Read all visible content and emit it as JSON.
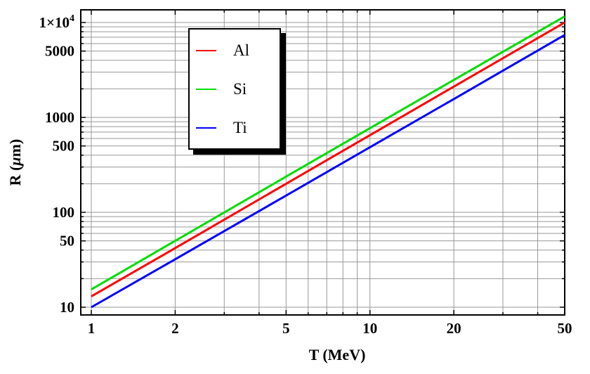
{
  "chart_data": {
    "type": "line",
    "title": "",
    "xlabel": "T (MeV)",
    "ylabel": "R (μm)",
    "ylabel_parts": {
      "prefix": "R (",
      "mu": "μ",
      "suffix": "m)"
    },
    "x_scale": "log",
    "y_scale": "log",
    "xlim": [
      0.92,
      50
    ],
    "ylim": [
      8.3,
      13700
    ],
    "grid": "all",
    "legend_position": "upper-left-inside",
    "x_ticks": [
      {
        "v": 1,
        "label": "1"
      },
      {
        "v": 2,
        "label": "2"
      },
      {
        "v": 5,
        "label": "5"
      },
      {
        "v": 10,
        "label": "10"
      },
      {
        "v": 20,
        "label": "20"
      },
      {
        "v": 50,
        "label": "50"
      }
    ],
    "y_ticks": [
      {
        "v": 10,
        "label": "10"
      },
      {
        "v": 50,
        "label": "50"
      },
      {
        "v": 100,
        "label": "100"
      },
      {
        "v": 500,
        "label": "500"
      },
      {
        "v": 1000,
        "label": "1000"
      },
      {
        "v": 5000,
        "label": "5000"
      },
      {
        "v": 10000,
        "label": "1×10",
        "exp": "4"
      }
    ],
    "x_minor_ticks": [
      3,
      4,
      6,
      7,
      8,
      9,
      30,
      40
    ],
    "y_minor_ticks": [
      20,
      30,
      40,
      60,
      70,
      80,
      90,
      200,
      300,
      400,
      600,
      700,
      800,
      900,
      2000,
      3000,
      4000,
      6000,
      7000,
      8000,
      9000
    ],
    "x_gridlines": [
      1,
      2,
      3,
      4,
      5,
      6,
      7,
      8,
      9,
      10,
      20,
      30,
      40,
      50
    ],
    "y_gridlines": [
      10,
      20,
      30,
      40,
      50,
      60,
      70,
      80,
      90,
      100,
      200,
      300,
      400,
      500,
      600,
      700,
      800,
      900,
      1000,
      2000,
      3000,
      4000,
      5000,
      6000,
      7000,
      8000,
      9000,
      10000
    ],
    "series": [
      {
        "name": "Al",
        "color": "#ff0000",
        "x": [
          1,
          2,
          5,
          10,
          20,
          50
        ],
        "y": [
          13,
          42,
          200,
          650,
          2110,
          10000
        ]
      },
      {
        "name": "Si",
        "color": "#00dd00",
        "x": [
          1,
          2,
          5,
          10,
          20,
          50
        ],
        "y": [
          15.4,
          50,
          238,
          770,
          2480,
          11600
        ]
      },
      {
        "name": "Ti",
        "color": "#0000ff",
        "x": [
          1,
          2,
          5,
          10,
          20,
          50
        ],
        "y": [
          10,
          32,
          150,
          485,
          1560,
          7400
        ]
      }
    ],
    "colors": {
      "grid": "#999999",
      "frame": "#000000",
      "background": "#ffffff"
    }
  }
}
